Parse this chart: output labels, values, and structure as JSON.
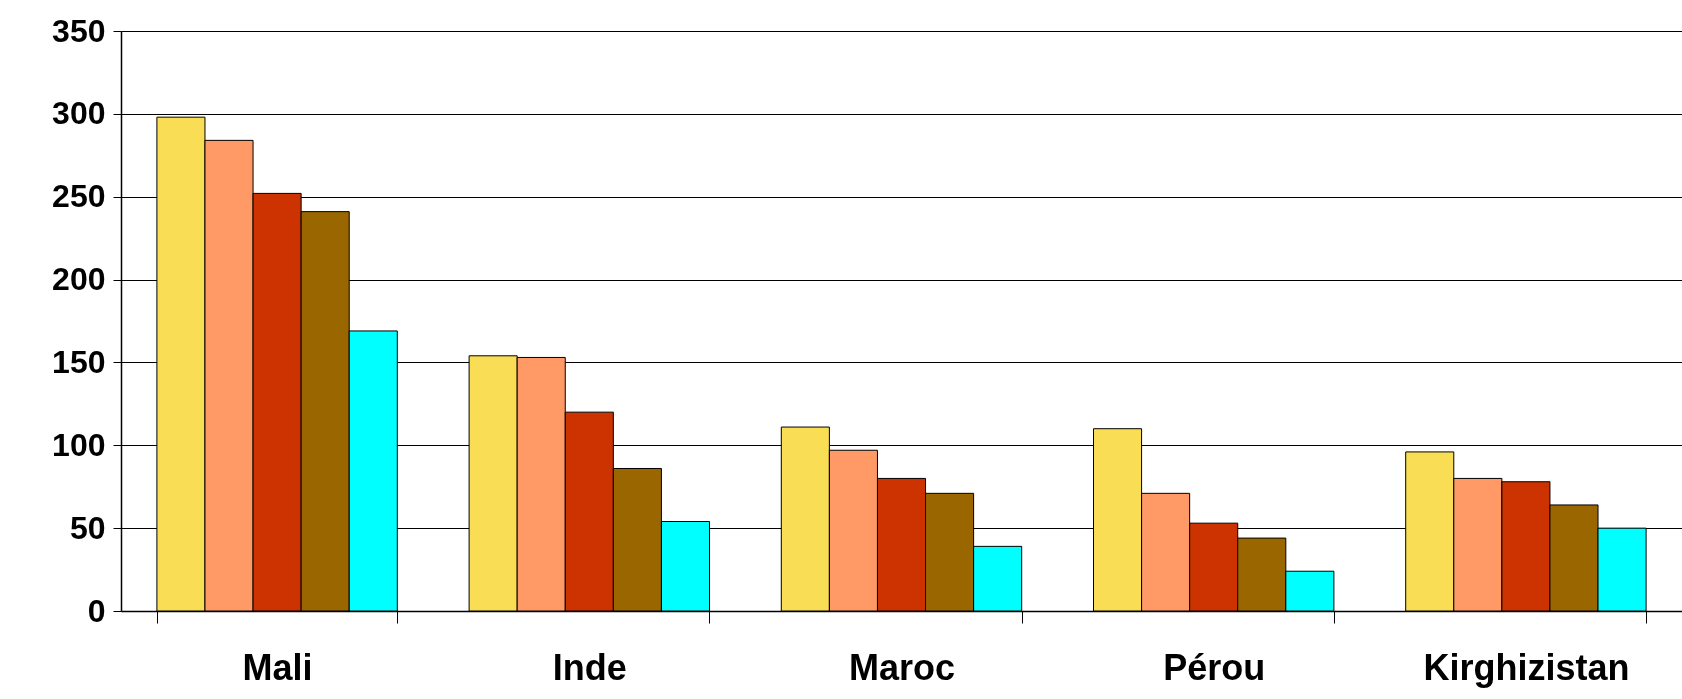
{
  "chart_data": {
    "type": "bar",
    "categories": [
      "Mali",
      "Inde",
      "Maroc",
      "Pérou",
      "Kirghizistan"
    ],
    "series": [
      {
        "color": "#f9dd55",
        "values": [
          298,
          154,
          111,
          110,
          96
        ]
      },
      {
        "color": "#ff9966",
        "values": [
          284,
          153,
          97,
          71,
          80
        ]
      },
      {
        "color": "#cc3300",
        "values": [
          252,
          120,
          80,
          53,
          78
        ]
      },
      {
        "color": "#996600",
        "values": [
          241,
          86,
          71,
          44,
          64
        ]
      },
      {
        "color": "#00ffff",
        "values": [
          169,
          54,
          39,
          24,
          50
        ]
      }
    ],
    "ylim": [
      0,
      350
    ],
    "yticks": [
      0,
      50,
      100,
      150,
      200,
      250,
      300,
      350
    ],
    "grid": "y",
    "legend": false
  }
}
